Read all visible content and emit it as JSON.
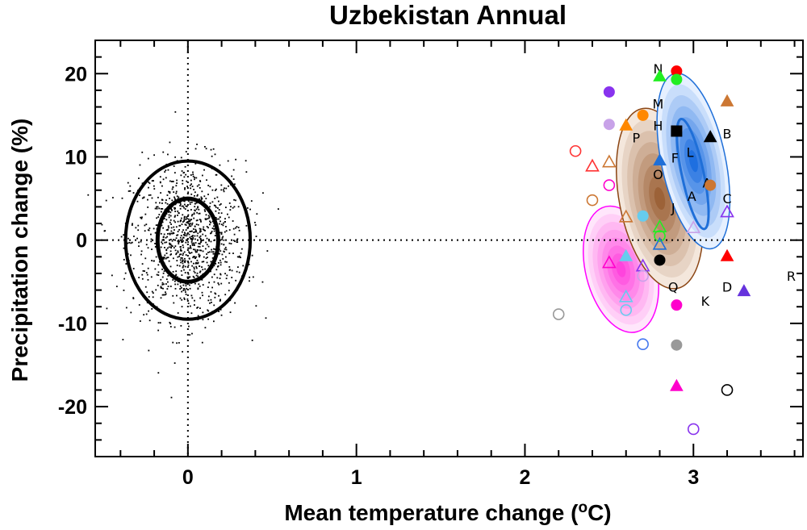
{
  "chart_data": {
    "type": "scatter",
    "title": "Uzbekistan Annual",
    "xlabel": "Mean temperature change (",
    "xlabel_sup": "o",
    "xlabel_end": "C)",
    "ylabel": "Precipitation change (%)",
    "xlim": [
      -0.55,
      3.65
    ],
    "ylim": [
      -26,
      24
    ],
    "x_ticks": [
      0,
      1,
      2,
      3
    ],
    "x_tick_labels": [
      "0",
      "1",
      "2",
      "3"
    ],
    "y_ticks": [
      -20,
      -10,
      0,
      10,
      20
    ],
    "y_tick_labels": [
      "-20",
      "-10",
      "0",
      "10",
      "20"
    ],
    "reference_lines": {
      "x": 0,
      "y": 0,
      "style": "dotted"
    },
    "natural_variability": {
      "center": [
        0,
        0
      ],
      "ellipses": [
        {
          "rx": 0.18,
          "ry": 5.0,
          "stroke": "#000000",
          "width": 5
        },
        {
          "rx": 0.37,
          "ry": 9.5,
          "stroke": "#000000",
          "width": 4
        }
      ]
    },
    "ensemble_clouds": [
      {
        "name": "pink",
        "cx": 2.57,
        "cy": -3.5,
        "rx": 0.21,
        "ry": 15.5,
        "tilt_deg": -14,
        "outline": "#ff00ff",
        "fill_inner": "#ff44dd",
        "fill_outer": "#ffe6fb"
      },
      {
        "name": "brown",
        "cx": 2.8,
        "cy": 5.0,
        "rx": 0.24,
        "ry": 22.0,
        "tilt_deg": -11,
        "outline": "#8b4513",
        "fill_inner": "#9c6238",
        "fill_outer": "#f4e7dc"
      },
      {
        "name": "blue",
        "cx": 3.0,
        "cy": 9.5,
        "rx": 0.19,
        "ry": 21.5,
        "tilt_deg": -12,
        "outline": "#1f6fd8",
        "fill_inner": "#1e6fe0",
        "fill_outer": "#e6f0ff",
        "inner_contour": {
          "cx": 2.98,
          "cy": 8.0,
          "rx": 0.065,
          "ry": 13.5
        }
      }
    ],
    "letter_labels": [
      {
        "text": "N",
        "x": 2.79,
        "y": 20.6
      },
      {
        "text": "M",
        "x": 2.79,
        "y": 16.4
      },
      {
        "text": "H",
        "x": 2.79,
        "y": 13.8
      },
      {
        "text": "P",
        "x": 2.66,
        "y": 12.3
      },
      {
        "text": "B",
        "x": 3.2,
        "y": 12.8
      },
      {
        "text": "F",
        "x": 2.89,
        "y": 9.9
      },
      {
        "text": "L",
        "x": 2.98,
        "y": 10.6
      },
      {
        "text": "O",
        "x": 2.79,
        "y": 7.9
      },
      {
        "text": "A",
        "x": 3.08,
        "y": 6.9
      },
      {
        "text": "A",
        "x": 2.99,
        "y": 5.3
      },
      {
        "text": "C",
        "x": 3.2,
        "y": 5.0
      },
      {
        "text": "J",
        "x": 2.88,
        "y": 3.9
      },
      {
        "text": "R",
        "x": 3.58,
        "y": -4.3
      },
      {
        "text": "Q",
        "x": 2.88,
        "y": -5.6
      },
      {
        "text": "D",
        "x": 3.2,
        "y": -5.6
      },
      {
        "text": "K",
        "x": 3.07,
        "y": -7.3
      }
    ],
    "markers": [
      {
        "shape": "circle",
        "fill": true,
        "color": "#ff0000",
        "x": 2.9,
        "y": 20.3
      },
      {
        "shape": "triangle",
        "fill": true,
        "color": "#22ee22",
        "x": 2.8,
        "y": 19.7
      },
      {
        "shape": "circle",
        "fill": true,
        "color": "#22ee22",
        "x": 2.9,
        "y": 19.3
      },
      {
        "shape": "circle",
        "fill": true,
        "color": "#8833ee",
        "x": 2.5,
        "y": 17.8
      },
      {
        "shape": "triangle",
        "fill": true,
        "color": "#cc7733",
        "x": 3.2,
        "y": 16.7
      },
      {
        "shape": "circle",
        "fill": true,
        "color": "#ff8800",
        "x": 2.7,
        "y": 15.0
      },
      {
        "shape": "circle",
        "fill": true,
        "color": "#c8a2e8",
        "x": 2.5,
        "y": 13.9
      },
      {
        "shape": "triangle",
        "fill": true,
        "color": "#ff8800",
        "x": 2.6,
        "y": 13.8
      },
      {
        "shape": "square",
        "fill": true,
        "color": "#000000",
        "x": 2.9,
        "y": 13.1
      },
      {
        "shape": "triangle",
        "fill": true,
        "color": "#000000",
        "x": 3.1,
        "y": 12.4
      },
      {
        "shape": "circle",
        "fill": false,
        "color": "#ff3333",
        "x": 2.3,
        "y": 10.7
      },
      {
        "shape": "triangle",
        "fill": false,
        "color": "#cc7733",
        "x": 2.5,
        "y": 9.4
      },
      {
        "shape": "triangle",
        "fill": true,
        "color": "#1f6fd8",
        "x": 2.8,
        "y": 9.6
      },
      {
        "shape": "triangle",
        "fill": false,
        "color": "#ff3333",
        "x": 2.4,
        "y": 8.9
      },
      {
        "shape": "circle",
        "fill": false,
        "color": "#ff00cc",
        "x": 2.5,
        "y": 6.6
      },
      {
        "shape": "circle",
        "fill": true,
        "color": "#cc7733",
        "x": 3.1,
        "y": 6.6
      },
      {
        "shape": "circle",
        "fill": false,
        "color": "#cc7733",
        "x": 2.4,
        "y": 4.8
      },
      {
        "shape": "triangle",
        "fill": false,
        "color": "#8833ee",
        "x": 3.2,
        "y": 3.4
      },
      {
        "shape": "circle",
        "fill": true,
        "color": "#66ccee",
        "x": 2.7,
        "y": 2.9
      },
      {
        "shape": "triangle",
        "fill": false,
        "color": "#cc7733",
        "x": 2.6,
        "y": 2.8
      },
      {
        "shape": "triangle",
        "fill": false,
        "color": "#22ee22",
        "x": 2.8,
        "y": 1.6
      },
      {
        "shape": "triangle",
        "fill": false,
        "color": "#c8a2e8",
        "x": 3.0,
        "y": 1.5
      },
      {
        "shape": "circle",
        "fill": false,
        "color": "#22ee22",
        "x": 2.8,
        "y": 0.5
      },
      {
        "shape": "triangle",
        "fill": false,
        "color": "#1f6fd8",
        "x": 2.8,
        "y": -0.5
      },
      {
        "shape": "triangle",
        "fill": true,
        "color": "#ff0000",
        "x": 3.2,
        "y": -1.9
      },
      {
        "shape": "triangle",
        "fill": true,
        "color": "#66ccee",
        "x": 2.6,
        "y": -1.9
      },
      {
        "shape": "circle",
        "fill": true,
        "color": "#000000",
        "x": 2.8,
        "y": -2.4
      },
      {
        "shape": "triangle",
        "fill": false,
        "color": "#ff00cc",
        "x": 2.5,
        "y": -2.7
      },
      {
        "shape": "triangle",
        "fill": false,
        "color": "#8833ee",
        "x": 2.7,
        "y": -3.1
      },
      {
        "shape": "circle",
        "fill": false,
        "color": "#c8a2e8",
        "x": 2.7,
        "y": -4.3
      },
      {
        "shape": "triangle",
        "fill": true,
        "color": "#6633dd",
        "x": 3.3,
        "y": -6.1
      },
      {
        "shape": "triangle",
        "fill": false,
        "color": "#66ccee",
        "x": 2.6,
        "y": -6.8
      },
      {
        "shape": "circle",
        "fill": true,
        "color": "#ff00cc",
        "x": 2.9,
        "y": -7.8
      },
      {
        "shape": "circle",
        "fill": false,
        "color": "#66ccee",
        "x": 2.6,
        "y": -8.4
      },
      {
        "shape": "circle",
        "fill": false,
        "color": "#999999",
        "x": 2.2,
        "y": -8.9
      },
      {
        "shape": "circle",
        "fill": false,
        "color": "#4477ee",
        "x": 2.7,
        "y": -12.5
      },
      {
        "shape": "circle",
        "fill": true,
        "color": "#999999",
        "x": 2.9,
        "y": -12.6
      },
      {
        "shape": "triangle",
        "fill": true,
        "color": "#ff00cc",
        "x": 2.9,
        "y": -17.5
      },
      {
        "shape": "circle",
        "fill": false,
        "color": "#000000",
        "x": 3.2,
        "y": -18.0
      },
      {
        "shape": "circle",
        "fill": false,
        "color": "#8833ee",
        "x": 3.0,
        "y": -22.7
      }
    ]
  }
}
